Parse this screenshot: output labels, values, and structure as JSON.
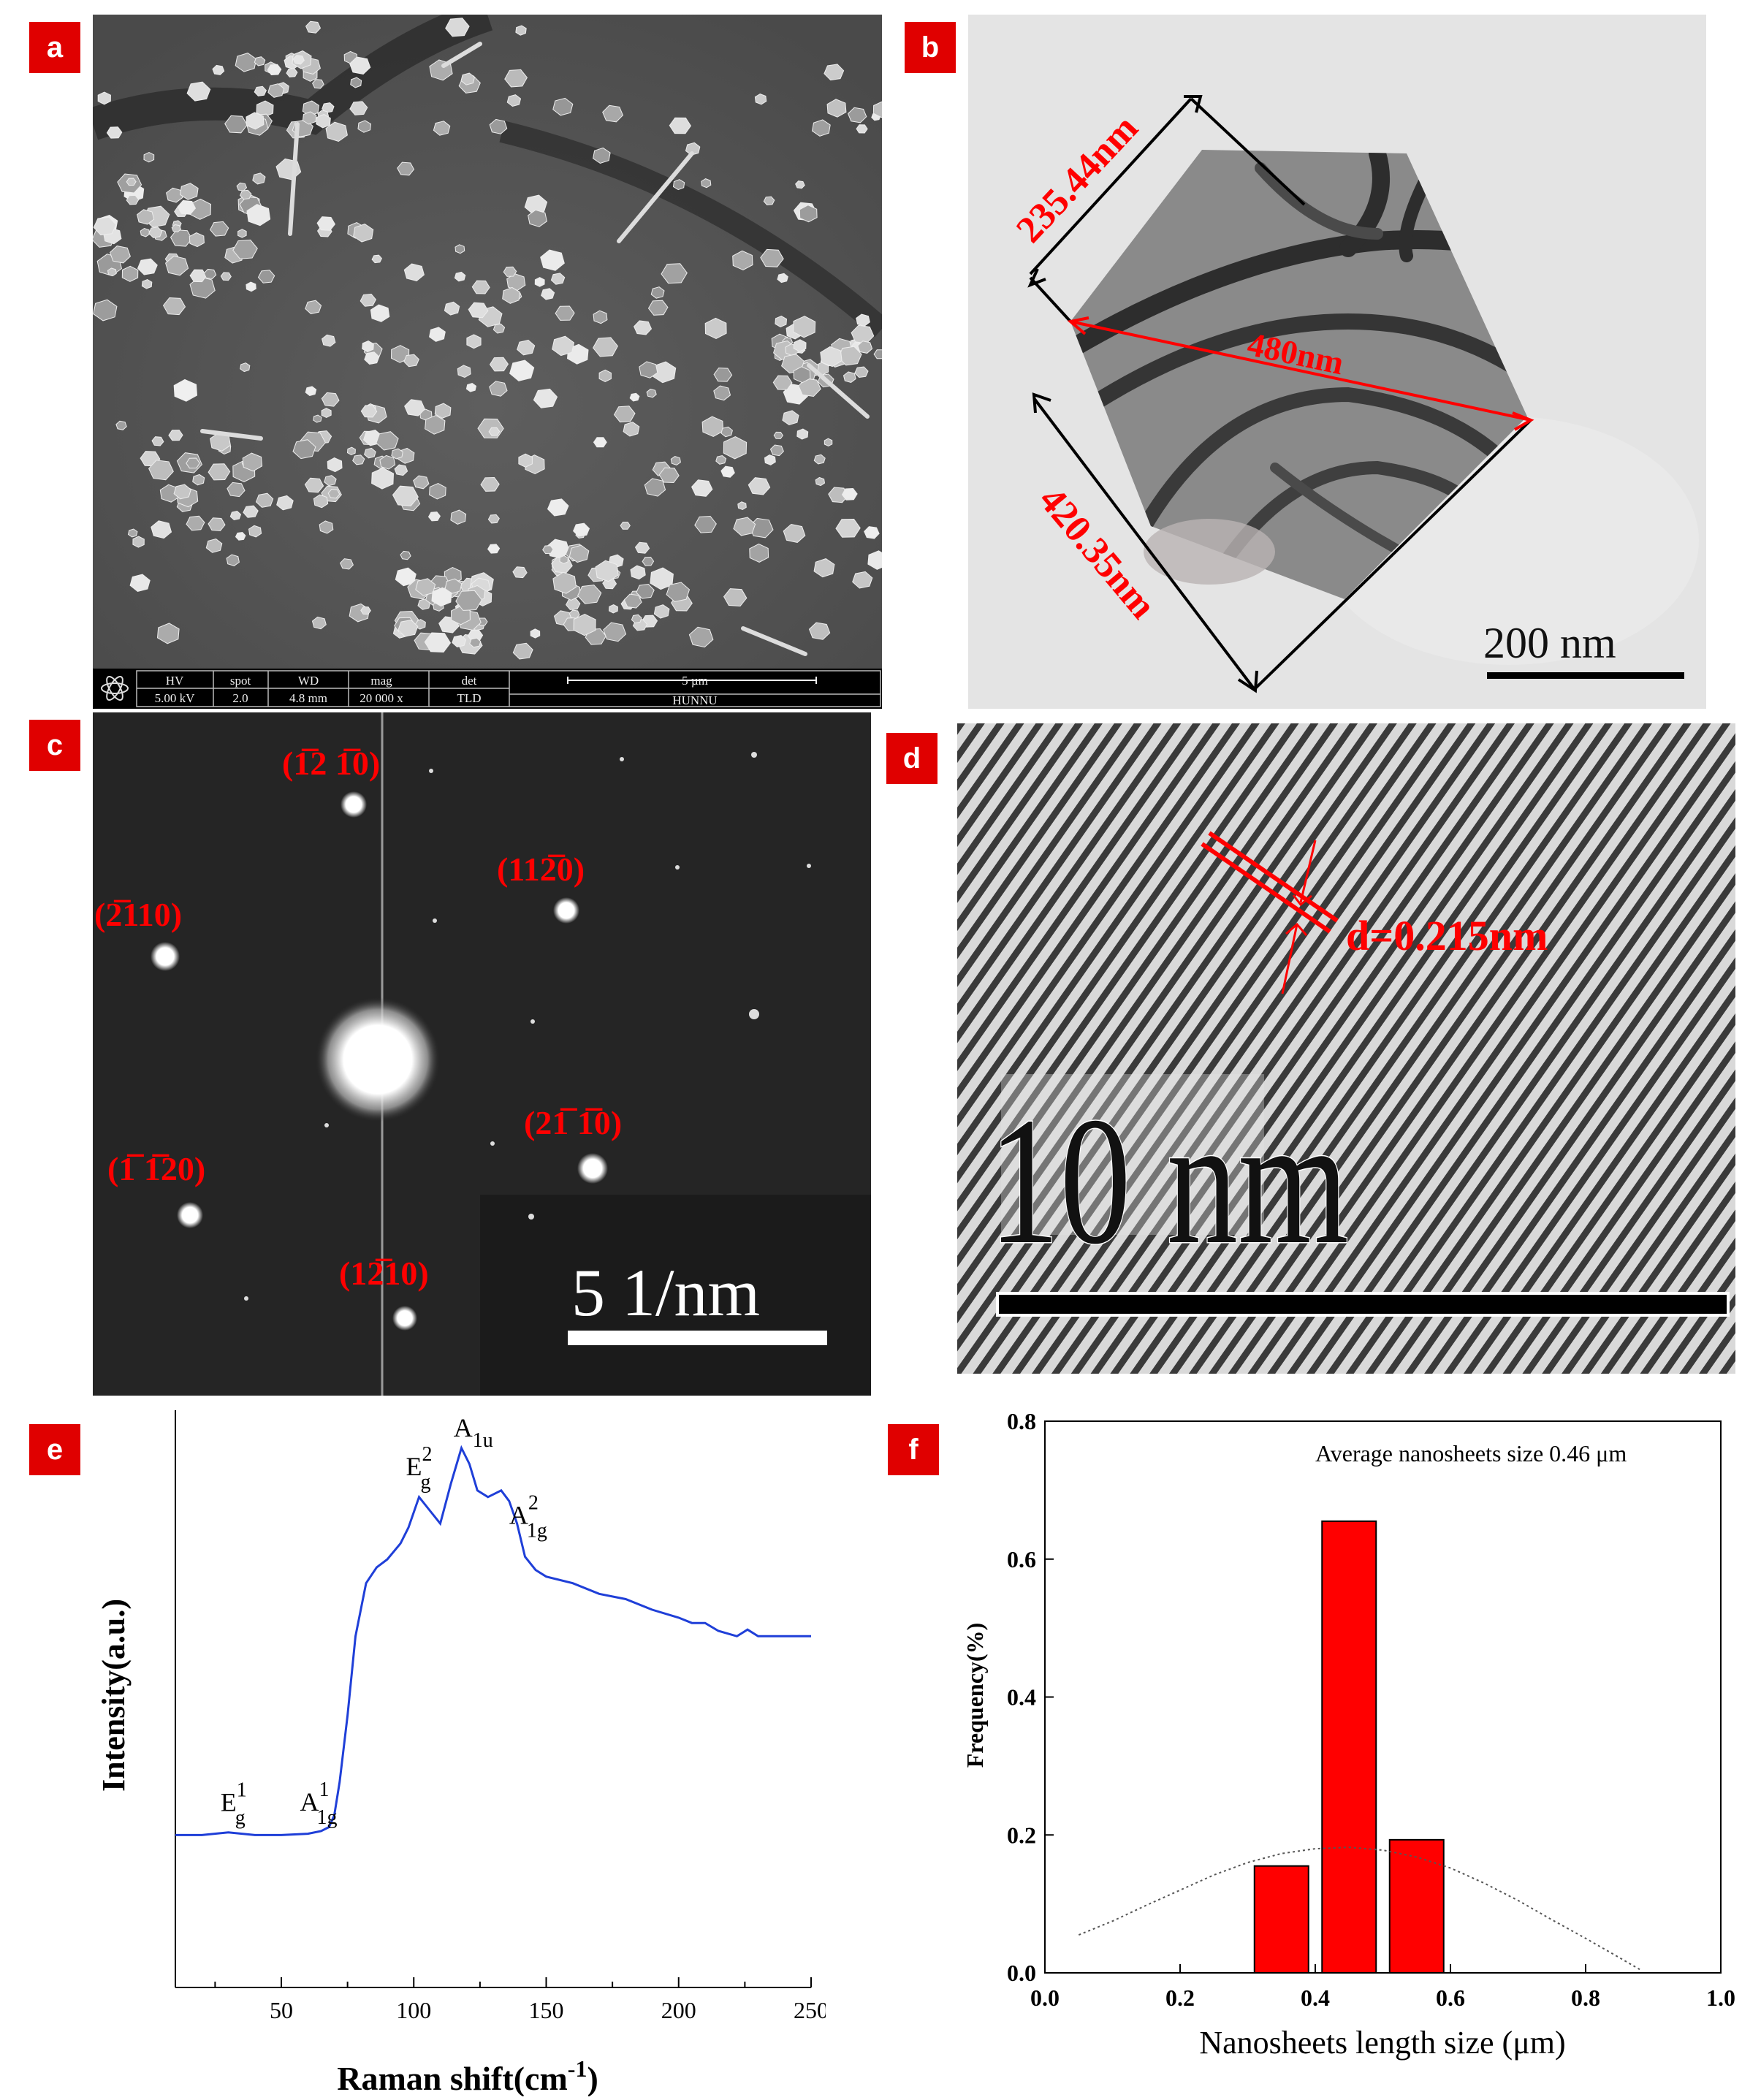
{
  "panels": {
    "a": {
      "tag": "a",
      "info_headers": [
        "HV",
        "spot",
        "WD",
        "mag",
        "det"
      ],
      "info_values": [
        "5.00 kV",
        "2.0",
        "4.8 mm",
        "20 000 x",
        "TLD"
      ],
      "scale_label": "5 µm",
      "lab": "HUNNU"
    },
    "b": {
      "tag": "b",
      "edge_label_1": "235.44nm",
      "diagonal_label": "480nm",
      "edge_label_2": "420.35nm",
      "scale_label": "200 nm"
    },
    "c": {
      "tag": "c",
      "spots": [
        "(1̅2 1̅0)",
        "(112̅0)",
        "(2̅110)",
        "(21̅ 1̅0)",
        "(1̅ 1̅20)",
        "(12̅10)"
      ],
      "scale_label": "5 1/nm"
    },
    "d": {
      "tag": "d",
      "spacing_label": "d=0.215nm",
      "scale_label": "10 nm"
    },
    "e": {
      "tag": "e"
    },
    "f": {
      "tag": "f"
    }
  },
  "chart_data": [
    {
      "panel": "e",
      "type": "line",
      "xlabel": "Raman shift(cm-1)",
      "ylabel": "Intensity(a.u.)",
      "xlim": [
        10,
        250
      ],
      "xticks": [
        50,
        100,
        150,
        200,
        250
      ],
      "line_color": "#1f3fd8",
      "series": [
        {
          "x": [
            10,
            20,
            30,
            40,
            50,
            60,
            65,
            68,
            70,
            72,
            75,
            78,
            82,
            86,
            90,
            95,
            98,
            102,
            106,
            110,
            114,
            118,
            121,
            124,
            128,
            133,
            136,
            139,
            142,
            146,
            150,
            160,
            170,
            180,
            190,
            200,
            205,
            210,
            215,
            222,
            226,
            230,
            240,
            250
          ],
          "y": [
            0.0,
            0.0,
            0.02,
            0.0,
            0.0,
            0.01,
            0.03,
            0.06,
            0.15,
            0.4,
            0.9,
            1.5,
            1.9,
            2.02,
            2.08,
            2.2,
            2.32,
            2.55,
            2.45,
            2.35,
            2.65,
            2.92,
            2.8,
            2.6,
            2.55,
            2.6,
            2.52,
            2.35,
            2.1,
            2.0,
            1.95,
            1.9,
            1.82,
            1.78,
            1.7,
            1.64,
            1.6,
            1.6,
            1.54,
            1.5,
            1.55,
            1.5,
            1.5,
            1.5
          ]
        }
      ],
      "annotations": [
        {
          "base": "E",
          "sup": "1",
          "sub": "g",
          "x": 32
        },
        {
          "base": "A",
          "sup": "1",
          "sub": "1g",
          "x": 62
        },
        {
          "base": "E",
          "sup": "2",
          "sub": "g",
          "x": 102
        },
        {
          "base": "A",
          "sup": "",
          "sub": "1u",
          "x": 120
        },
        {
          "base": "A",
          "sup": "2",
          "sub": "1g",
          "x": 141
        }
      ]
    },
    {
      "panel": "f",
      "type": "bar",
      "xlabel": "Nanosheets length size (μm)",
      "ylabel": "Frequency(%)",
      "xlim": [
        0.0,
        1.0
      ],
      "ylim": [
        0.0,
        0.8
      ],
      "xticks": [
        "0.0",
        "0.2",
        "0.4",
        "0.6",
        "0.8",
        "1.0"
      ],
      "yticks": [
        "0.0",
        "0.2",
        "0.4",
        "0.6",
        "0.8"
      ],
      "bar_color": "#ff0000",
      "bars": [
        {
          "x0": 0.31,
          "x1": 0.39,
          "value": 0.155
        },
        {
          "x0": 0.41,
          "x1": 0.49,
          "value": 0.655
        },
        {
          "x0": 0.51,
          "x1": 0.59,
          "value": 0.193
        }
      ],
      "fit_curve": {
        "x": [
          0.05,
          0.1,
          0.15,
          0.2,
          0.25,
          0.3,
          0.35,
          0.4,
          0.45,
          0.5,
          0.55,
          0.6,
          0.65,
          0.7,
          0.75,
          0.8,
          0.85,
          0.88
        ],
        "y": [
          0.055,
          0.075,
          0.098,
          0.12,
          0.142,
          0.16,
          0.173,
          0.18,
          0.182,
          0.178,
          0.168,
          0.152,
          0.13,
          0.105,
          0.077,
          0.05,
          0.022,
          0.005
        ]
      },
      "annotation": "Average nanosheets size 0.46 μm"
    }
  ]
}
